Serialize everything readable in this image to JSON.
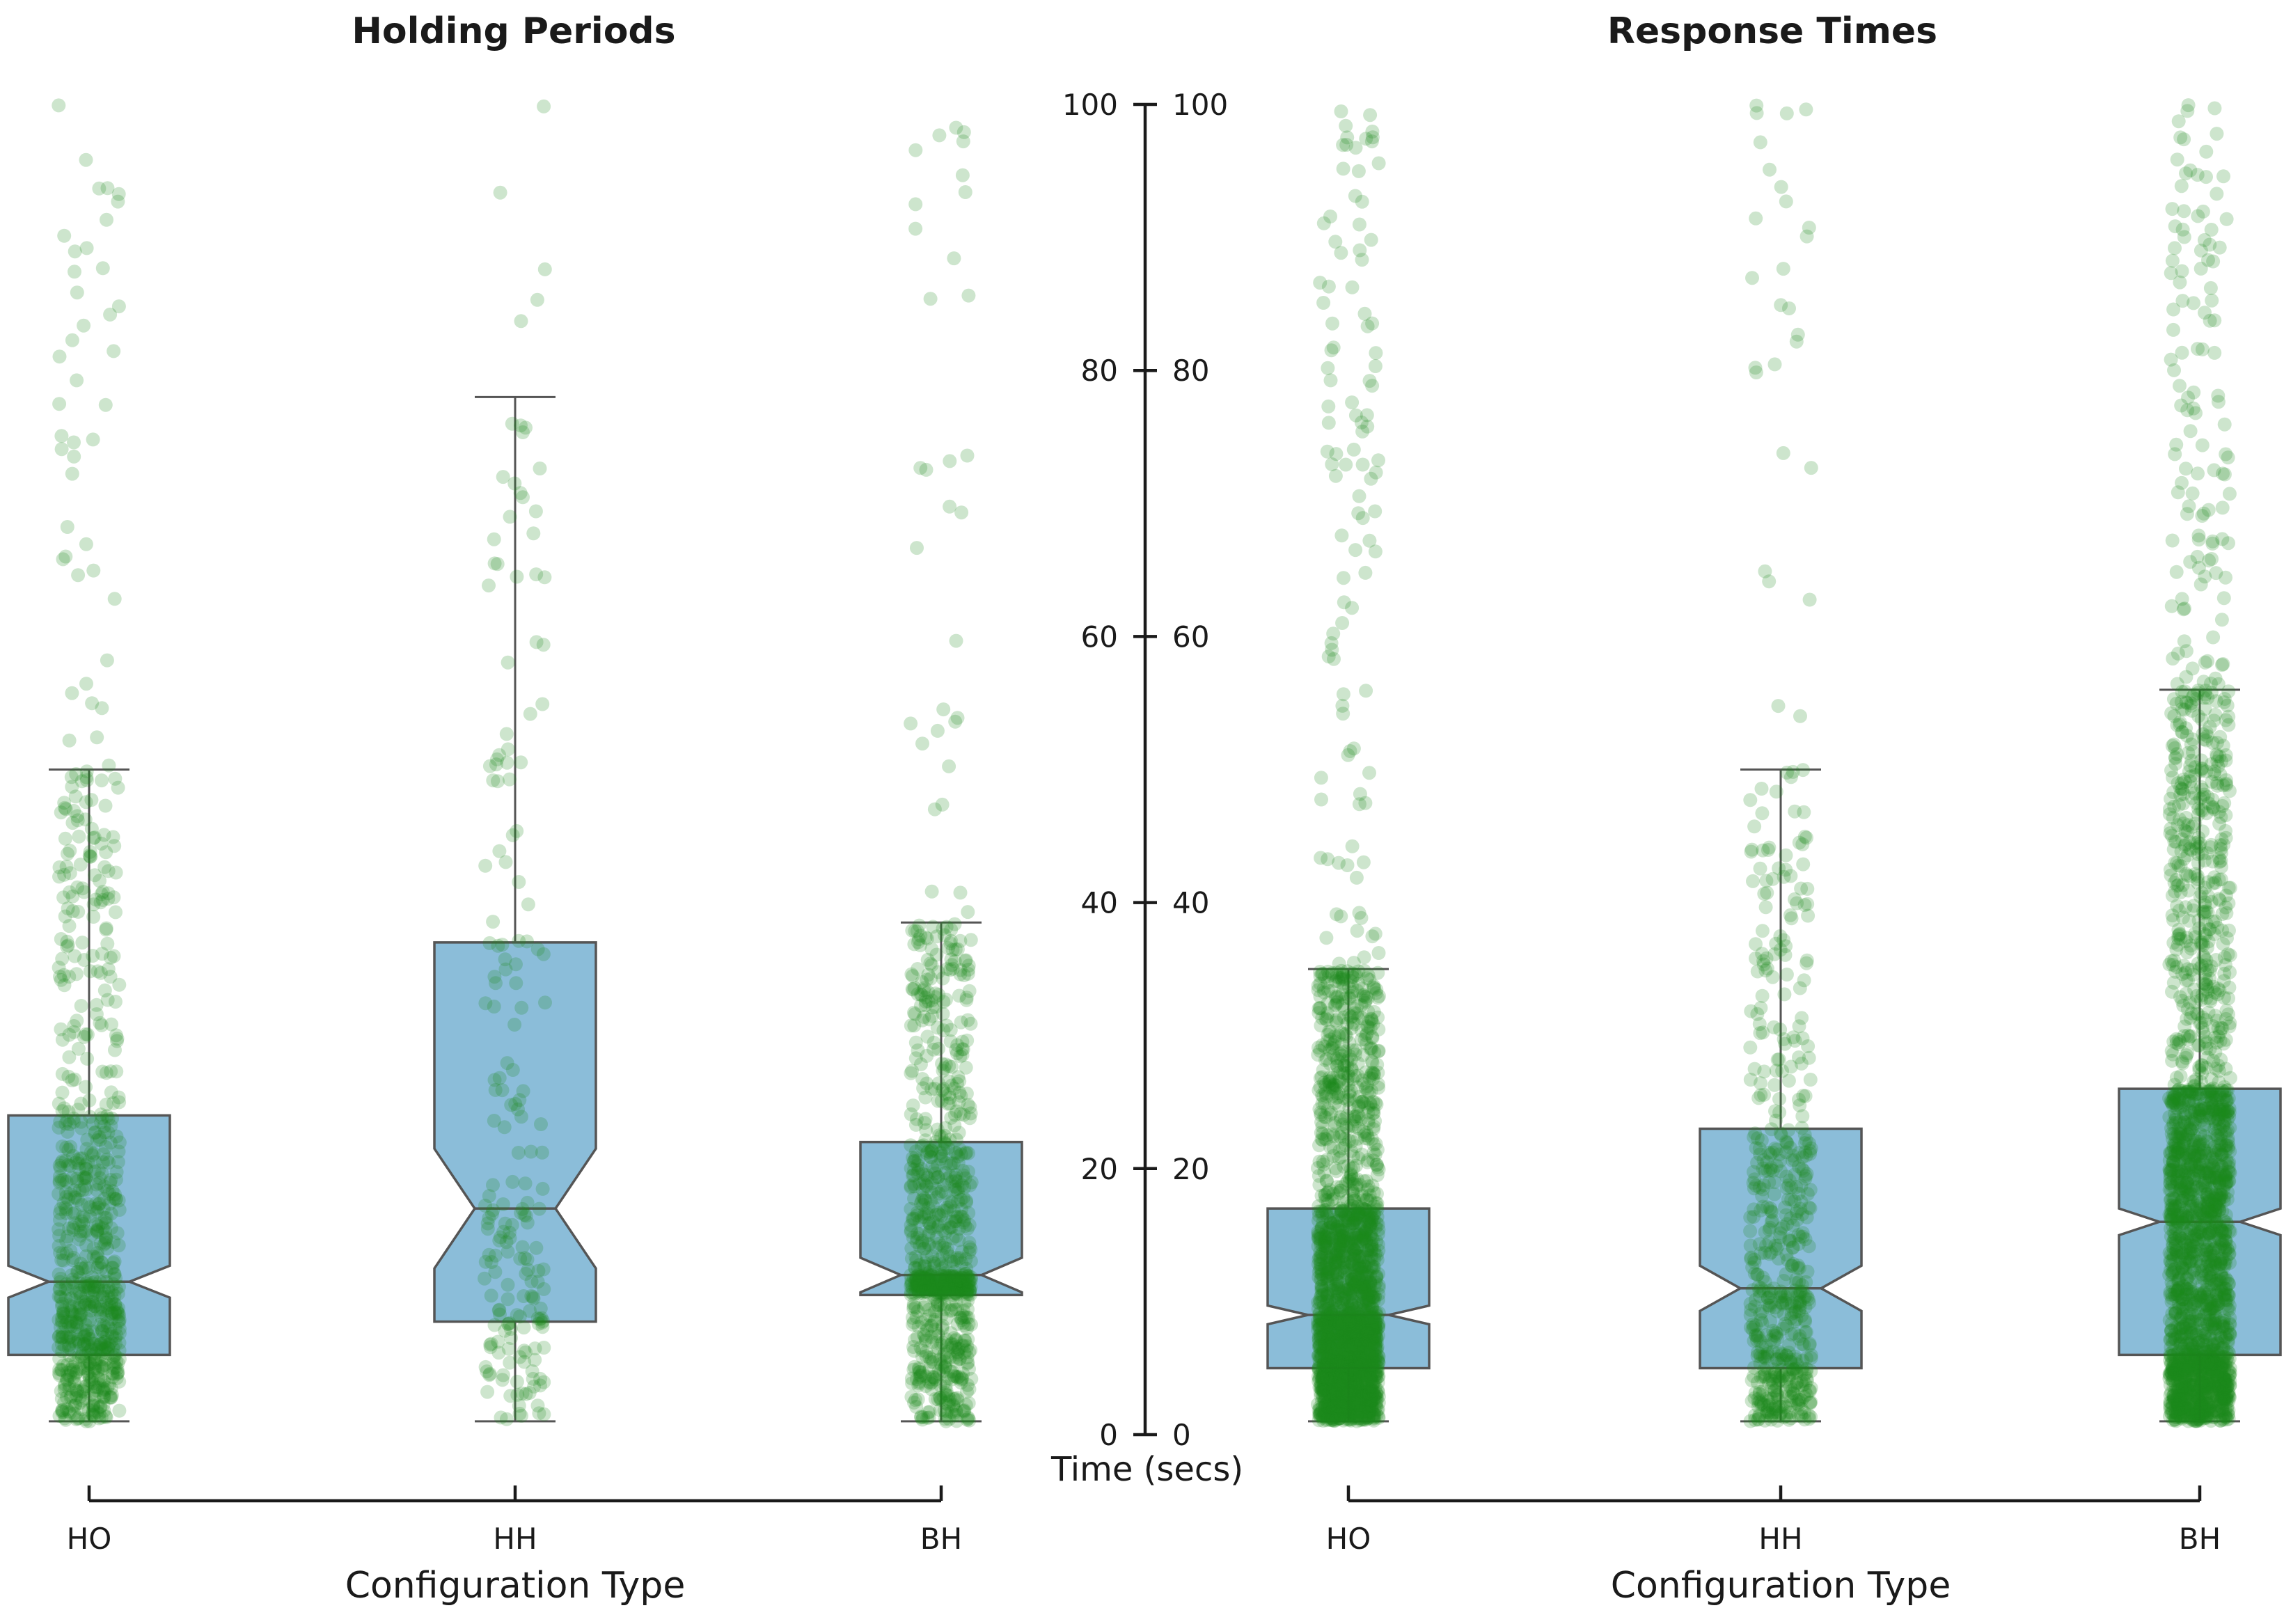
{
  "chart_data": [
    {
      "type": "box",
      "title": "Holding Periods",
      "xlabel": "Configuration Type",
      "ylabel": "Time (secs)",
      "ylim": [
        0,
        100
      ],
      "categories": [
        "HO",
        "HH",
        "BH"
      ],
      "boxes": [
        {
          "category": "HO",
          "whisker_low": 1,
          "q1": 6,
          "median": 11.5,
          "q3": 24,
          "whisker_high": 50,
          "notch_low": 10.3,
          "notch_high": 12.7,
          "n_points": 800
        },
        {
          "category": "HH",
          "whisker_low": 1,
          "q1": 8.5,
          "median": 17,
          "q3": 37,
          "whisker_high": 78,
          "notch_low": 12.5,
          "notch_high": 21.5,
          "n_points": 200
        },
        {
          "category": "BH",
          "whisker_low": 1,
          "q1": 10.5,
          "median": 12,
          "q3": 22,
          "whisker_high": 38.5,
          "notch_low": 10.7,
          "notch_high": 13.3,
          "n_points": 900
        }
      ]
    },
    {
      "type": "box",
      "title": "Response Times",
      "xlabel": "Configuration Type",
      "ylabel": "Time (secs)",
      "ylim": [
        0,
        100
      ],
      "categories": [
        "HO",
        "HH",
        "BH"
      ],
      "boxes": [
        {
          "category": "HO",
          "whisker_low": 1,
          "q1": 5,
          "median": 9,
          "q3": 17,
          "whisker_high": 35,
          "notch_low": 8.3,
          "notch_high": 9.7,
          "n_points": 2200
        },
        {
          "category": "HH",
          "whisker_low": 1,
          "q1": 5,
          "median": 11,
          "q3": 23,
          "whisker_high": 50,
          "notch_low": 9.3,
          "notch_high": 12.7,
          "n_points": 600
        },
        {
          "category": "BH",
          "whisker_low": 1,
          "q1": 6,
          "median": 16,
          "q3": 26,
          "whisker_high": 56,
          "notch_low": 15.0,
          "notch_high": 17.0,
          "n_points": 2200
        }
      ]
    }
  ],
  "yticks": [
    0,
    20,
    40,
    60,
    80,
    100
  ],
  "colors": {
    "box_fill": "#8bbdd9",
    "box_edge": "#555555",
    "points": "#1a8a1a",
    "axis": "#1a1a1a"
  }
}
